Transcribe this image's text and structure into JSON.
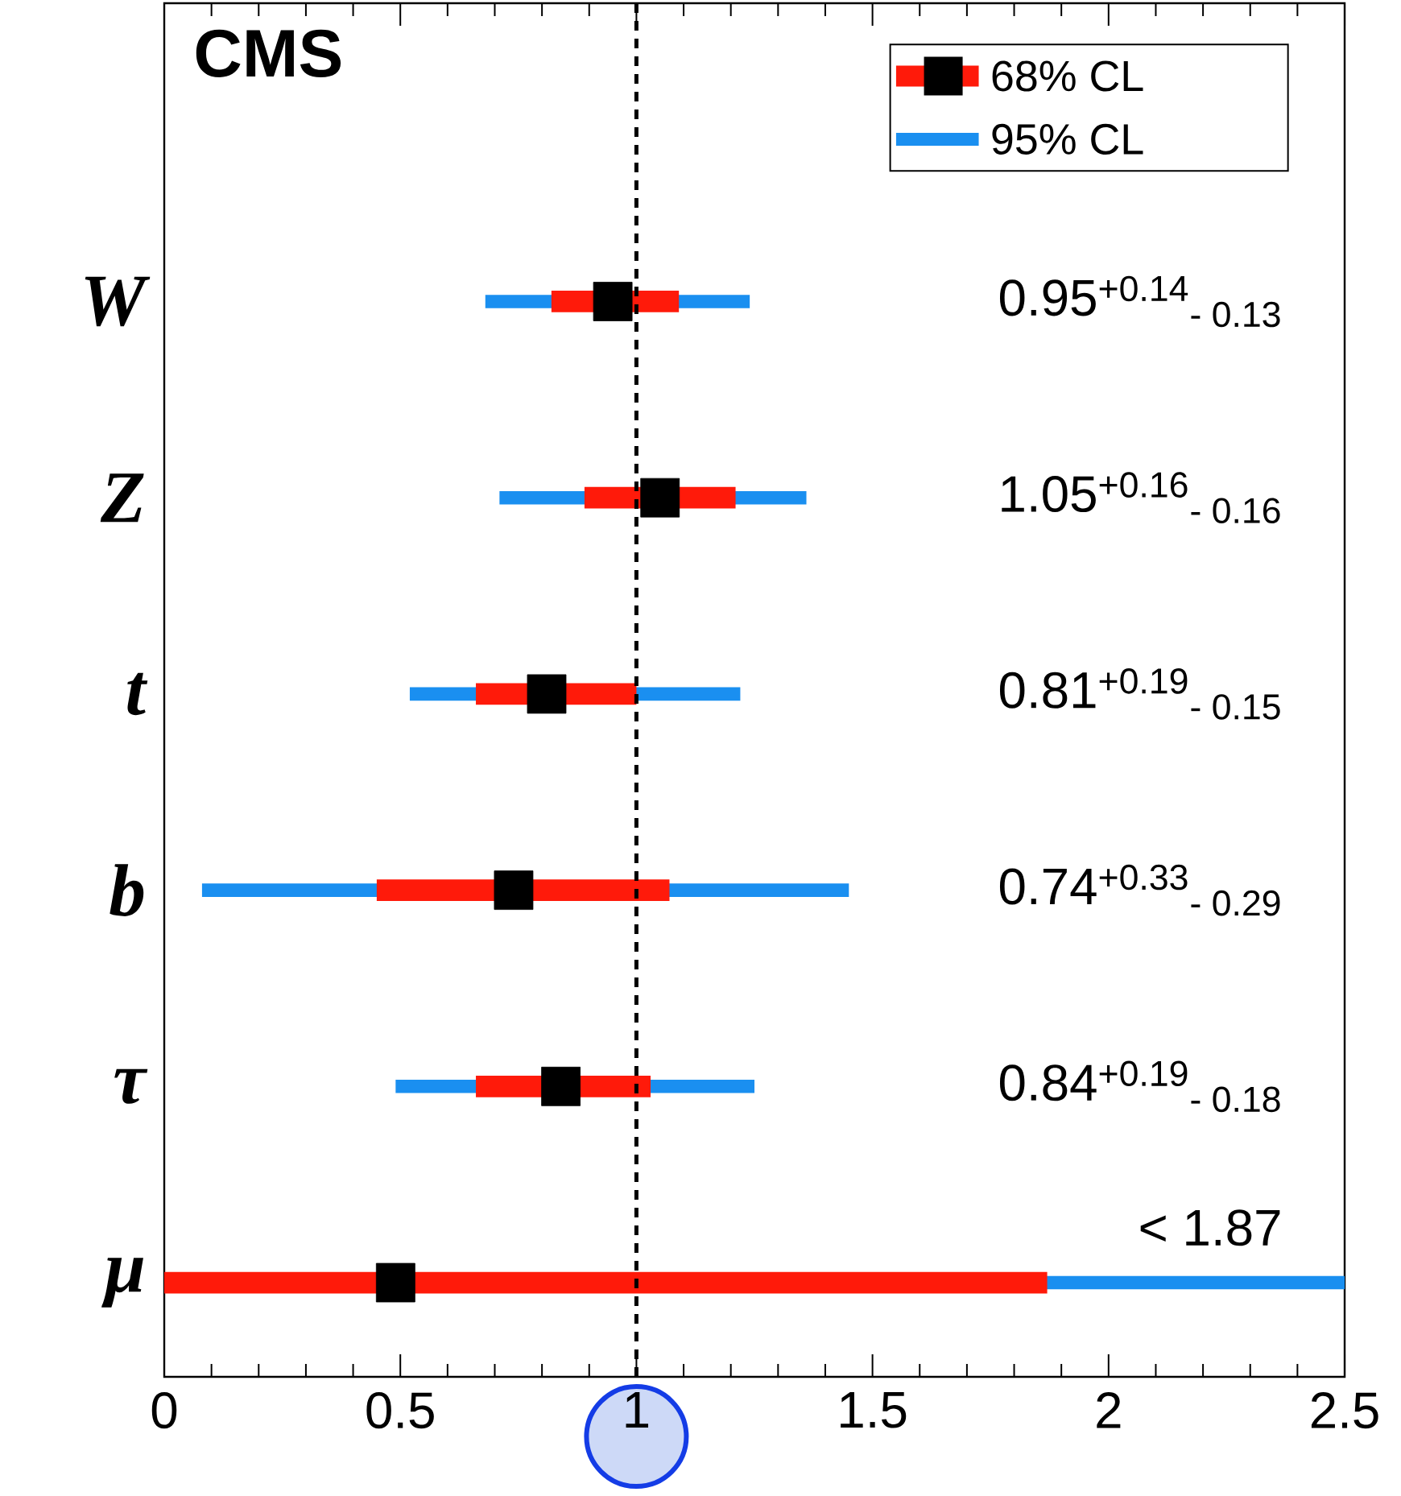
{
  "chart_data": {
    "type": "bar",
    "orientation": "horizontal",
    "title": "CMS",
    "categories": [
      "W",
      "Z",
      "t",
      "b",
      "τ",
      "μ"
    ],
    "series": [
      {
        "name": "68% CL",
        "color": "#ff1a0a",
        "base": [
          0.82,
          0.89,
          0.66,
          0.45,
          0.66,
          0
        ],
        "values": [
          0.27,
          0.32,
          0.34,
          0.62,
          0.37,
          1.87
        ]
      },
      {
        "name": "95% CL",
        "color": "#1a8ff0",
        "base": [
          0.68,
          0.71,
          0.52,
          0.08,
          0.49,
          0
        ],
        "values": [
          0.56,
          0.65,
          0.7,
          1.37,
          0.76,
          2.5
        ]
      },
      {
        "type": "scatter",
        "color": "#000000",
        "marker": "square",
        "values": [
          0.95,
          1.05,
          0.81,
          0.74,
          0.84,
          0.49
        ]
      }
    ],
    "annotations": [
      "0.95$^{+0.14}$$_{- 0.13}$",
      "1.05$^{+0.16}$$_{- 0.16}$",
      "0.81$^{+0.19}$$_{- 0.15}$",
      "0.74$^{+0.33}$$_{- 0.29}$",
      "0.84$^{+0.19}$$_{- 0.18}$",
      "< 1.87"
    ],
    "xlim": [
      0,
      2.5
    ],
    "xticks": [
      0,
      0.5,
      1,
      1.5,
      2,
      2.5
    ],
    "ref_lines": [
      {
        "axis": "x",
        "value": 1,
        "line_style": "dashed",
        "color": "#000000"
      }
    ],
    "legend": "top right",
    "grid": false
  }
}
